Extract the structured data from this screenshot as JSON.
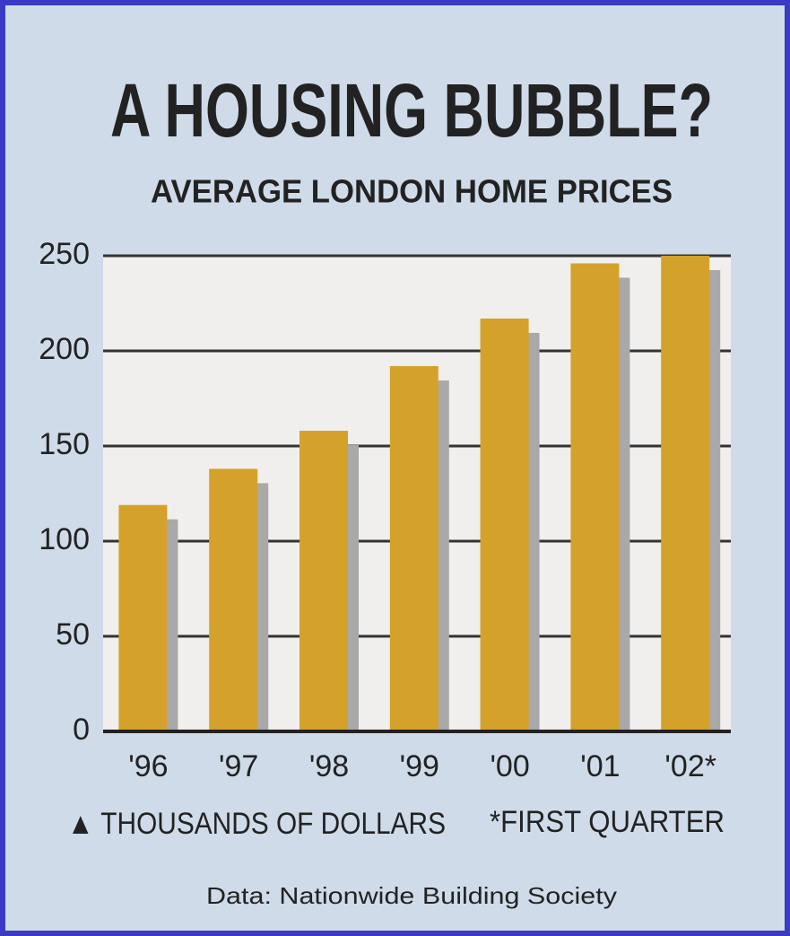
{
  "chart_data": {
    "type": "bar",
    "title": "A HOUSING BUBBLE?",
    "subtitle": "AVERAGE LONDON HOME PRICES",
    "categories": [
      "'96",
      "'97",
      "'98",
      "'99",
      "'00",
      "'01",
      "'02*"
    ],
    "values": [
      119,
      138,
      158,
      192,
      217,
      246,
      250
    ],
    "color": "#d4a12a",
    "ylim": [
      0,
      250
    ],
    "yticks": [
      0,
      50,
      100,
      150,
      200,
      250
    ],
    "grid": true,
    "unit_note": "▲ THOUSANDS OF DOLLARS",
    "footnote": "*FIRST QUARTER",
    "source": "Data: Nationwide Building Society"
  }
}
